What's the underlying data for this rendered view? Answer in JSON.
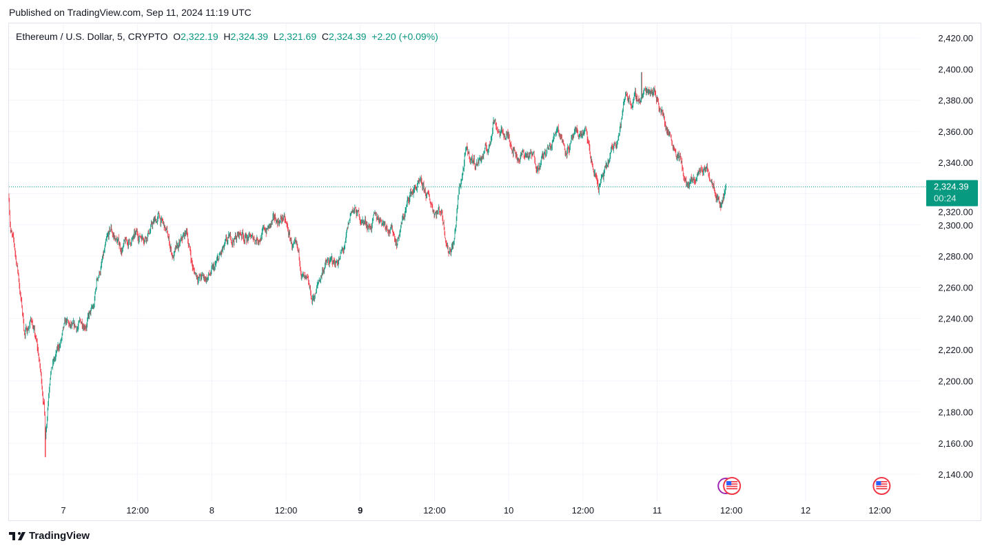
{
  "published": "Published on TradingView.com, Sep 11, 2024 11:19 UTC",
  "legend": {
    "symbol": "Ethereum / U.S. Dollar, 5, CRYPTO",
    "open_label": "O",
    "open": "2,322.19",
    "high_label": "H",
    "high": "2,324.39",
    "low_label": "L",
    "low": "2,321.69",
    "close_label": "C",
    "close": "2,324.39",
    "change": "+2.20 (+0.09%)"
  },
  "footer": {
    "brand": "TradingView",
    "logo_icon": "tradingview-logo-icon"
  },
  "colors": {
    "up": "#089981",
    "down": "#f23645",
    "grid": "#f0f3fa",
    "border": "#e0e3eb",
    "event_us": "#f23645",
    "event_other": "#9c27b0"
  },
  "chart_data": {
    "type": "candlestick",
    "title": "Ethereum / U.S. Dollar, 5, CRYPTO",
    "interval_minutes": 5,
    "x_unit": "hours since Sep 7 00:00 UTC",
    "xlim": [
      -8.8,
      138.5
    ],
    "ylim": [
      2122.4,
      2429.3
    ],
    "y_ticks": [
      2140,
      2160,
      2180,
      2200,
      2220,
      2240,
      2260,
      2280,
      2300,
      2320,
      2340,
      2360,
      2380,
      2400,
      2420
    ],
    "y_tick_labels": [
      "2,140.00",
      "2,160.00",
      "2,180.00",
      "2,200.00",
      "2,220.00",
      "2,240.00",
      "2,260.00",
      "2,280.00",
      "2,300.00",
      "2,320.00",
      "2,340.00",
      "2,360.00",
      "2,380.00",
      "2,400.00",
      "2,420.00"
    ],
    "x_ticks": [
      {
        "t": 0,
        "label": "7",
        "bold": false
      },
      {
        "t": 12,
        "label": "12:00",
        "bold": false
      },
      {
        "t": 24,
        "label": "8",
        "bold": false
      },
      {
        "t": 36,
        "label": "12:00",
        "bold": false
      },
      {
        "t": 48,
        "label": "9",
        "bold": true
      },
      {
        "t": 60,
        "label": "12:00",
        "bold": false
      },
      {
        "t": 72,
        "label": "10",
        "bold": false
      },
      {
        "t": 84,
        "label": "12:00",
        "bold": false
      },
      {
        "t": 96,
        "label": "11",
        "bold": false
      },
      {
        "t": 108,
        "label": "12:00",
        "bold": false
      },
      {
        "t": 120,
        "label": "12",
        "bold": false
      },
      {
        "t": 132,
        "label": "12:00",
        "bold": false
      }
    ],
    "last_price": 2324.39,
    "last_price_label": "2,324.39",
    "countdown": "00:24",
    "low_point": {
      "t": -2.9,
      "price": 2151
    },
    "high_point": {
      "t": 93.5,
      "price": 2398
    },
    "price_path": [
      [
        -8.8,
        2318
      ],
      [
        -8.58,
        2300
      ],
      [
        -7.35,
        2270
      ],
      [
        -6.24,
        2230
      ],
      [
        -5.12,
        2240
      ],
      [
        -4.01,
        2215
      ],
      [
        -3.12,
        2185
      ],
      [
        -2.9,
        2165
      ],
      [
        -2.12,
        2210
      ],
      [
        -1.23,
        2215
      ],
      [
        0.45,
        2235
      ],
      [
        1.56,
        2230
      ],
      [
        3.23,
        2238
      ],
      [
        4.9,
        2245
      ],
      [
        5.46,
        2265
      ],
      [
        6.57,
        2280
      ],
      [
        7.68,
        2295
      ],
      [
        9.36,
        2285
      ],
      [
        11.03,
        2290
      ],
      [
        13.25,
        2295
      ],
      [
        14.37,
        2300
      ],
      [
        15.48,
        2305
      ],
      [
        16.59,
        2295
      ],
      [
        17.71,
        2280
      ],
      [
        18.82,
        2285
      ],
      [
        19.94,
        2295
      ],
      [
        21.05,
        2270
      ],
      [
        22.72,
        2265
      ],
      [
        24.39,
        2270
      ],
      [
        25.5,
        2280
      ],
      [
        27.17,
        2290
      ],
      [
        28.84,
        2295
      ],
      [
        30.52,
        2290
      ],
      [
        32.19,
        2295
      ],
      [
        33.86,
        2300
      ],
      [
        35.53,
        2305
      ],
      [
        36.64,
        2290
      ],
      [
        37.75,
        2280
      ],
      [
        38.87,
        2265
      ],
      [
        40.2,
        2250
      ],
      [
        41.1,
        2260
      ],
      [
        42.21,
        2275
      ],
      [
        43.88,
        2275
      ],
      [
        45.55,
        2285
      ],
      [
        46.66,
        2310
      ],
      [
        47.78,
        2305
      ],
      [
        49.45,
        2300
      ],
      [
        51.12,
        2305
      ],
      [
        52.79,
        2300
      ],
      [
        53.9,
        2290
      ],
      [
        55.02,
        2305
      ],
      [
        56.13,
        2320
      ],
      [
        57.24,
        2325
      ],
      [
        58.36,
        2320
      ],
      [
        60.03,
        2310
      ],
      [
        61.14,
        2310
      ],
      [
        62.25,
        2285
      ],
      [
        63.15,
        2290
      ],
      [
        63.93,
        2320
      ],
      [
        65.04,
        2345
      ],
      [
        66.71,
        2340
      ],
      [
        67.83,
        2345
      ],
      [
        68.94,
        2350
      ],
      [
        69.5,
        2370
      ],
      [
        70.61,
        2360
      ],
      [
        72.28,
        2355
      ],
      [
        73.39,
        2345
      ],
      [
        75.06,
        2345
      ],
      [
        76.73,
        2340
      ],
      [
        77.85,
        2345
      ],
      [
        78.96,
        2350
      ],
      [
        79.85,
        2365
      ],
      [
        81.19,
        2350
      ],
      [
        82.86,
        2355
      ],
      [
        84.31,
        2360
      ],
      [
        85.64,
        2335
      ],
      [
        86.53,
        2325
      ],
      [
        87.87,
        2335
      ],
      [
        88.98,
        2350
      ],
      [
        90.1,
        2365
      ],
      [
        90.99,
        2385
      ],
      [
        91.77,
        2380
      ],
      [
        92.88,
        2380
      ],
      [
        93.99,
        2385
      ],
      [
        95.11,
        2390
      ],
      [
        96.22,
        2380
      ],
      [
        97.33,
        2365
      ],
      [
        98.45,
        2355
      ],
      [
        99.57,
        2345
      ],
      [
        100.68,
        2325
      ],
      [
        101.79,
        2325
      ],
      [
        102.9,
        2335
      ],
      [
        104.02,
        2335
      ],
      [
        105.13,
        2330
      ],
      [
        106.25,
        2315
      ],
      [
        107.14,
        2324.39
      ]
    ],
    "events": [
      {
        "t": 107.1,
        "type": "other"
      },
      {
        "t": 108.1,
        "type": "us-economic"
      },
      {
        "t": 132.3,
        "type": "us-economic"
      }
    ]
  }
}
